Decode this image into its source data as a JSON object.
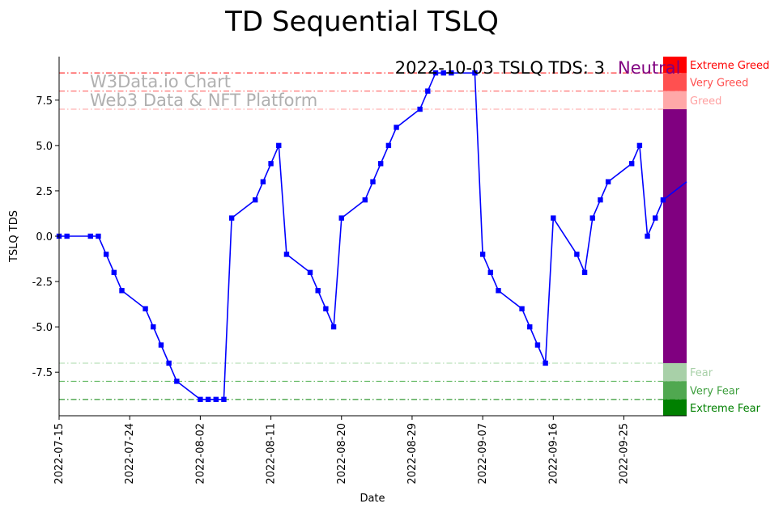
{
  "chart_data": {
    "type": "line",
    "title": "TD Sequential TSLQ",
    "xlabel": "Date",
    "ylabel": "TSLQ TDS",
    "x_ticks": [
      "2022-07-15",
      "2022-07-24",
      "2022-08-02",
      "2022-08-11",
      "2022-08-20",
      "2022-08-29",
      "2022-09-07",
      "2022-09-16",
      "2022-09-25"
    ],
    "y_ticks": [
      "-7.5",
      "-5.0",
      "-2.5",
      "0.0",
      "2.5",
      "5.0",
      "7.5"
    ],
    "ylim": [
      -9.9,
      9.9
    ],
    "xlim": [
      "2022-07-15",
      "2022-10-03"
    ],
    "grid": false,
    "watermark": [
      "W3Data.io Chart",
      "Web3 Data & NFT Platform"
    ],
    "status": {
      "text": "2022-10-03 TSLQ TDS: 3",
      "sentiment": "Neutral",
      "sentiment_color": "#800080"
    },
    "line_color": "#0000ff",
    "series": [
      {
        "x": [
          "2022-07-15",
          "2022-07-16",
          "2022-07-19",
          "2022-07-20",
          "2022-07-21",
          "2022-07-22",
          "2022-07-23",
          "2022-07-26",
          "2022-07-27",
          "2022-07-28",
          "2022-07-29",
          "2022-07-30",
          "2022-08-02",
          "2022-08-03",
          "2022-08-04",
          "2022-08-05",
          "2022-08-06",
          "2022-08-09",
          "2022-08-10",
          "2022-08-11",
          "2022-08-12",
          "2022-08-13",
          "2022-08-16",
          "2022-08-17",
          "2022-08-18",
          "2022-08-19",
          "2022-08-20",
          "2022-08-23",
          "2022-08-24",
          "2022-08-25",
          "2022-08-26",
          "2022-08-27",
          "2022-08-30",
          "2022-08-31",
          "2022-09-01",
          "2022-09-02",
          "2022-09-03",
          "2022-09-06",
          "2022-09-07",
          "2022-09-08",
          "2022-09-09",
          "2022-09-12",
          "2022-09-13",
          "2022-09-14",
          "2022-09-15",
          "2022-09-16",
          "2022-09-19",
          "2022-09-20",
          "2022-09-21",
          "2022-09-22",
          "2022-09-23",
          "2022-09-26",
          "2022-09-27",
          "2022-09-28",
          "2022-09-29",
          "2022-09-30",
          "2022-10-03"
        ],
        "values": [
          0,
          0,
          0,
          0,
          -1,
          -2,
          -3,
          -4,
          -5,
          -6,
          -7,
          -8,
          -9,
          -9,
          -9,
          -9,
          1,
          2,
          3,
          4,
          5,
          -1,
          -2,
          -3,
          -4,
          -5,
          1,
          2,
          3,
          4,
          5,
          6,
          7,
          8,
          9,
          9,
          9,
          9,
          -1,
          -2,
          -3,
          -4,
          -5,
          -6,
          -7,
          1,
          -1,
          -2,
          1,
          2,
          3,
          4,
          5,
          0,
          1,
          2,
          3
        ]
      }
    ],
    "reference_lines": [
      {
        "value": 9,
        "color": "#ff0000"
      },
      {
        "value": 8,
        "color": "#ff5050"
      },
      {
        "value": 7,
        "color": "#ffa0a0"
      },
      {
        "value": -7,
        "color": "#a8d8a8"
      },
      {
        "value": -8,
        "color": "#50b050"
      },
      {
        "value": -9,
        "color": "#008000"
      }
    ],
    "zones": [
      {
        "label": "Extreme Greed",
        "from": 9,
        "to": 9.9,
        "color": "#ff0000",
        "text_color": "#ff0000"
      },
      {
        "label": "Very Greed",
        "from": 8,
        "to": 9,
        "color": "#ff5050",
        "text_color": "#ff5050"
      },
      {
        "label": "Greed",
        "from": 7,
        "to": 8,
        "color": "#ffa8a8",
        "text_color": "#ffa0a0"
      },
      {
        "label": "",
        "from": -7,
        "to": 7,
        "color": "#800080",
        "text_color": "#800080"
      },
      {
        "label": "Fear",
        "from": -8,
        "to": -7,
        "color": "#a8d0a8",
        "text_color": "#a8d0a8"
      },
      {
        "label": "Very Fear",
        "from": -9,
        "to": -8,
        "color": "#50a850",
        "text_color": "#40a040"
      },
      {
        "label": "Extreme Fear",
        "from": -9.9,
        "to": -9,
        "color": "#008000",
        "text_color": "#008000"
      }
    ]
  }
}
